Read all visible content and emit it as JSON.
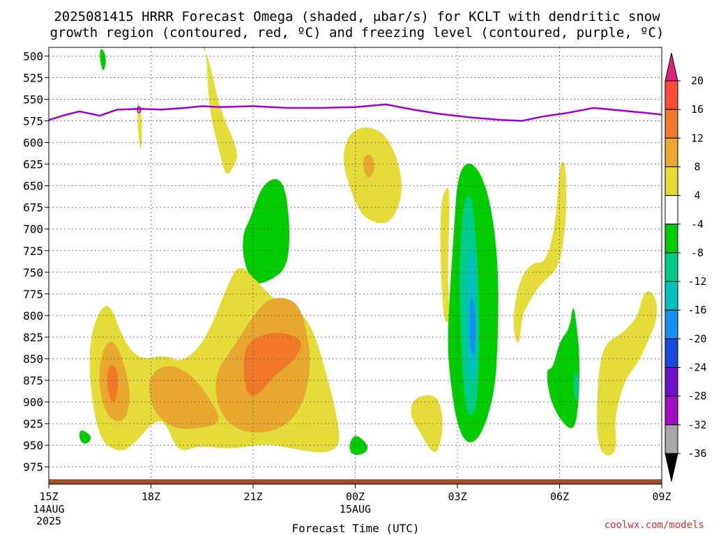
{
  "chart_data": {
    "type": "heatmap",
    "title": "2025081415 HRRR Forecast Omega (shaded, μbar/s) for KCLT with dendritic snow growth region (contoured, red, ºC) and freezing level (contoured, purple, ºC)",
    "title_lines": [
      "2025081415 HRRR Forecast Omega (shaded, μbar/s) for KCLT with dendritic snow",
      "growth region (contoured, red, ºC) and freezing level (contoured, purple, ºC)"
    ],
    "xlabel": "Forecast Time (UTC)",
    "ylabel": "",
    "x_ticks": [
      {
        "hour": 0,
        "label": "15Z",
        "sub": [
          "14AUG",
          "2025"
        ]
      },
      {
        "hour": 3,
        "label": "18Z",
        "sub": []
      },
      {
        "hour": 6,
        "label": "21Z",
        "sub": []
      },
      {
        "hour": 9,
        "label": "00Z",
        "sub": [
          "15AUG"
        ]
      },
      {
        "hour": 12,
        "label": "03Z",
        "sub": []
      },
      {
        "hour": 15,
        "label": "06Z",
        "sub": []
      },
      {
        "hour": 18,
        "label": "09Z",
        "sub": []
      }
    ],
    "y_axis": {
      "range_hpa": [
        490,
        995
      ],
      "reversed": true
    },
    "y_ticks": [
      500,
      525,
      550,
      575,
      600,
      625,
      650,
      675,
      700,
      725,
      750,
      775,
      800,
      825,
      850,
      875,
      900,
      925,
      950,
      975
    ],
    "grid": true,
    "colorbar": {
      "labels": [
        "20",
        "16",
        "12",
        "8",
        "4",
        "-4",
        "-8",
        "-12",
        "-16",
        "-20",
        "-24",
        "-28",
        "-32",
        "-36"
      ],
      "segments": [
        {
          "color": "#ff4a3a"
        },
        {
          "color": "#f07828"
        },
        {
          "color": "#e8a830"
        },
        {
          "color": "#e4dc38"
        },
        {
          "color": "#ffffff"
        },
        {
          "color": "#00cc00"
        },
        {
          "color": "#00cc88"
        },
        {
          "color": "#00c0c0"
        },
        {
          "color": "#1890f0"
        },
        {
          "color": "#1848e0"
        },
        {
          "color": "#7010c8"
        },
        {
          "color": "#a010c0"
        },
        {
          "color": "#a8a8a8"
        }
      ],
      "top_arrow_color": "#e0207a",
      "bottom_arrow_color": "#000000"
    },
    "colors": {
      "yellow": "#e4dc38",
      "gold": "#e8a830",
      "orange": "#f07828",
      "green": "#00cc00",
      "teal": "#00cc88",
      "cyan": "#00c0c0",
      "blue": "#1890f0",
      "freezing_line": "#9900cc",
      "ground": "#a0522d"
    },
    "freezing_level": {
      "label": "0",
      "label_point": [
        2.65,
        562
      ],
      "points": [
        [
          0,
          574
        ],
        [
          0.5,
          568
        ],
        [
          0.9,
          564
        ],
        [
          1.5,
          569
        ],
        [
          2.0,
          562
        ],
        [
          2.7,
          561
        ],
        [
          3.3,
          562
        ],
        [
          4.0,
          560
        ],
        [
          4.5,
          558
        ],
        [
          5.0,
          559
        ],
        [
          6.0,
          558
        ],
        [
          7.0,
          560
        ],
        [
          8.0,
          560
        ],
        [
          9.0,
          559
        ],
        [
          9.9,
          556
        ],
        [
          10.7,
          562
        ],
        [
          11.5,
          567
        ],
        [
          12.4,
          571
        ],
        [
          13.3,
          574
        ],
        [
          13.9,
          575
        ],
        [
          14.5,
          570
        ],
        [
          15.2,
          566
        ],
        [
          16.0,
          560
        ],
        [
          16.8,
          563
        ],
        [
          17.6,
          566
        ],
        [
          18.5,
          570
        ],
        [
          19.2,
          566
        ],
        [
          19.6,
          565
        ]
      ]
    },
    "omega_regions": [
      {
        "color": "yellow",
        "points": [
          [
            2.6,
            550
          ],
          [
            2.7,
            561
          ],
          [
            2.75,
            585
          ],
          [
            2.7,
            615
          ],
          [
            2.6,
            580
          ]
        ]
      },
      {
        "color": "green",
        "points": [
          [
            1.5,
            492
          ],
          [
            1.6,
            492
          ],
          [
            1.7,
            505
          ],
          [
            1.6,
            520
          ],
          [
            1.5,
            505
          ]
        ]
      },
      {
        "color": "yellow",
        "points": [
          [
            4.3,
            478
          ],
          [
            4.6,
            478
          ],
          [
            4.7,
            560
          ],
          [
            5.0,
            610
          ],
          [
            5.2,
            640
          ],
          [
            5.4,
            630
          ],
          [
            5.6,
            612
          ],
          [
            5.0,
            560
          ],
          [
            4.7,
            500
          ]
        ]
      },
      {
        "color": "green",
        "points": [
          [
            6.3,
            645
          ],
          [
            6.9,
            640
          ],
          [
            7.1,
            700
          ],
          [
            7.0,
            745
          ],
          [
            6.5,
            760
          ],
          [
            6.0,
            765
          ],
          [
            5.7,
            735
          ],
          [
            5.7,
            705
          ],
          [
            5.9,
            690
          ]
        ]
      },
      {
        "color": "yellow",
        "points": [
          [
            8.6,
            620
          ],
          [
            8.8,
            590
          ],
          [
            9.3,
            580
          ],
          [
            9.9,
            590
          ],
          [
            10.3,
            625
          ],
          [
            10.4,
            660
          ],
          [
            10.1,
            690
          ],
          [
            9.7,
            695
          ],
          [
            9.2,
            685
          ],
          [
            8.9,
            660
          ]
        ]
      },
      {
        "color": "gold",
        "points": [
          [
            9.2,
            620
          ],
          [
            9.4,
            612
          ],
          [
            9.6,
            622
          ],
          [
            9.5,
            640
          ],
          [
            9.3,
            640
          ]
        ]
      },
      {
        "color": "yellow",
        "points": [
          [
            1.1,
            833
          ],
          [
            1.7,
            775
          ],
          [
            2.2,
            830
          ],
          [
            2.7,
            852
          ],
          [
            3.4,
            845
          ],
          [
            3.9,
            855
          ],
          [
            4.6,
            830
          ],
          [
            5.3,
            760
          ],
          [
            5.6,
            740
          ],
          [
            6.1,
            760
          ],
          [
            6.7,
            785
          ],
          [
            7.4,
            795
          ],
          [
            7.8,
            820
          ],
          [
            8.1,
            860
          ],
          [
            8.4,
            905
          ],
          [
            8.6,
            950
          ],
          [
            8.1,
            960
          ],
          [
            7.3,
            955
          ],
          [
            6.4,
            948
          ],
          [
            5.3,
            955
          ],
          [
            4.4,
            950
          ],
          [
            3.8,
            960
          ],
          [
            3.4,
            920
          ],
          [
            3.0,
            925
          ],
          [
            2.6,
            945
          ],
          [
            2.1,
            960
          ],
          [
            1.4,
            942
          ]
        ]
      },
      {
        "color": "gold",
        "points": [
          [
            1.55,
            840
          ],
          [
            1.9,
            825
          ],
          [
            2.3,
            865
          ],
          [
            2.4,
            900
          ],
          [
            2.2,
            925
          ],
          [
            1.7,
            918
          ],
          [
            1.45,
            880
          ]
        ]
      },
      {
        "color": "orange",
        "points": [
          [
            1.75,
            855
          ],
          [
            2.0,
            860
          ],
          [
            2.05,
            885
          ],
          [
            1.9,
            905
          ],
          [
            1.7,
            885
          ]
        ]
      },
      {
        "color": "gold",
        "points": [
          [
            2.9,
            870
          ],
          [
            3.5,
            855
          ],
          [
            4.2,
            868
          ],
          [
            4.8,
            900
          ],
          [
            5.1,
            925
          ],
          [
            4.2,
            932
          ],
          [
            3.6,
            930
          ],
          [
            3.0,
            908
          ]
        ]
      },
      {
        "color": "gold",
        "points": [
          [
            4.9,
            865
          ],
          [
            5.4,
            838
          ],
          [
            6.0,
            800
          ],
          [
            6.5,
            778
          ],
          [
            7.3,
            782
          ],
          [
            7.6,
            820
          ],
          [
            7.7,
            860
          ],
          [
            7.5,
            900
          ],
          [
            7.0,
            928
          ],
          [
            6.1,
            938
          ],
          [
            5.3,
            928
          ],
          [
            4.9,
            900
          ]
        ]
      },
      {
        "color": "orange",
        "points": [
          [
            5.8,
            832
          ],
          [
            6.4,
            820
          ],
          [
            7.0,
            820
          ],
          [
            7.5,
            830
          ],
          [
            7.2,
            853
          ],
          [
            6.6,
            870
          ],
          [
            6.1,
            895
          ],
          [
            5.8,
            890
          ],
          [
            5.7,
            860
          ]
        ]
      },
      {
        "color": "green",
        "points": [
          [
            0.9,
            930
          ],
          [
            1.3,
            940
          ],
          [
            1.1,
            950
          ],
          [
            0.9,
            945
          ]
        ]
      },
      {
        "color": "green",
        "points": [
          [
            9.0,
            936
          ],
          [
            9.4,
            950
          ],
          [
            9.3,
            960
          ],
          [
            8.9,
            962
          ],
          [
            8.8,
            950
          ]
        ]
      },
      {
        "color": "yellow",
        "points": [
          [
            10.7,
            895
          ],
          [
            11.4,
            890
          ],
          [
            11.6,
            920
          ],
          [
            11.5,
            950
          ],
          [
            11.3,
            962
          ],
          [
            10.9,
            935
          ],
          [
            10.6,
            915
          ]
        ]
      },
      {
        "color": "yellow",
        "points": [
          [
            11.6,
            655
          ],
          [
            11.8,
            650
          ],
          [
            11.7,
            760
          ],
          [
            11.8,
            805
          ],
          [
            11.6,
            810
          ],
          [
            11.5,
            740
          ],
          [
            11.5,
            680
          ]
        ]
      },
      {
        "color": "yellow",
        "points": [
          [
            13.8,
            760
          ],
          [
            14.2,
            738
          ],
          [
            14.6,
            740
          ],
          [
            14.9,
            690
          ],
          [
            15.0,
            620
          ],
          [
            15.2,
            625
          ],
          [
            15.2,
            690
          ],
          [
            15.0,
            745
          ],
          [
            14.4,
            765
          ],
          [
            14.1,
            785
          ],
          [
            13.9,
            800
          ],
          [
            13.8,
            840
          ],
          [
            13.6,
            810
          ]
        ]
      },
      {
        "color": "green",
        "points": [
          [
            12.0,
            640
          ],
          [
            12.3,
            620
          ],
          [
            12.7,
            635
          ],
          [
            13.0,
            675
          ],
          [
            13.2,
            740
          ],
          [
            13.2,
            820
          ],
          [
            13.1,
            890
          ],
          [
            12.7,
            940
          ],
          [
            12.3,
            950
          ],
          [
            12.0,
            928
          ],
          [
            11.8,
            880
          ],
          [
            11.7,
            830
          ],
          [
            11.8,
            760
          ],
          [
            11.9,
            700
          ]
        ]
      },
      {
        "color": "teal",
        "points": [
          [
            12.2,
            665
          ],
          [
            12.4,
            660
          ],
          [
            12.5,
            690
          ],
          [
            12.6,
            745
          ],
          [
            12.65,
            810
          ],
          [
            12.6,
            900
          ],
          [
            12.4,
            920
          ],
          [
            12.2,
            900
          ],
          [
            12.1,
            830
          ],
          [
            12.05,
            760
          ],
          [
            12.1,
            710
          ]
        ]
      },
      {
        "color": "cyan",
        "points": [
          [
            12.35,
            720
          ],
          [
            12.5,
            725
          ],
          [
            12.55,
            790
          ],
          [
            12.6,
            835
          ],
          [
            12.5,
            880
          ],
          [
            12.35,
            875
          ],
          [
            12.25,
            820
          ],
          [
            12.25,
            760
          ]
        ]
      },
      {
        "color": "blue",
        "points": [
          [
            12.4,
            775
          ],
          [
            12.52,
            790
          ],
          [
            12.55,
            820
          ],
          [
            12.5,
            850
          ],
          [
            12.38,
            840
          ],
          [
            12.35,
            800
          ]
        ]
      },
      {
        "color": "green",
        "points": [
          [
            14.8,
            862
          ],
          [
            15.0,
            830
          ],
          [
            15.3,
            815
          ],
          [
            15.4,
            785
          ],
          [
            15.5,
            810
          ],
          [
            15.6,
            850
          ],
          [
            15.55,
            910
          ],
          [
            15.4,
            935
          ],
          [
            15.0,
            920
          ],
          [
            14.7,
            895
          ],
          [
            14.6,
            862
          ]
        ]
      },
      {
        "color": "teal",
        "points": [
          [
            15.45,
            865
          ],
          [
            15.55,
            868
          ],
          [
            15.55,
            895
          ],
          [
            15.45,
            900
          ],
          [
            15.4,
            880
          ]
        ]
      },
      {
        "color": "yellow",
        "points": [
          [
            16.4,
            830
          ],
          [
            16.8,
            822
          ],
          [
            17.1,
            810
          ],
          [
            17.3,
            800
          ],
          [
            17.5,
            770
          ],
          [
            17.8,
            775
          ],
          [
            17.9,
            800
          ],
          [
            17.6,
            830
          ],
          [
            17.3,
            855
          ],
          [
            16.9,
            875
          ],
          [
            16.6,
            920
          ],
          [
            16.7,
            955
          ],
          [
            16.4,
            965
          ],
          [
            16.1,
            950
          ],
          [
            16.1,
            890
          ],
          [
            16.2,
            850
          ]
        ]
      }
    ]
  },
  "footer": {
    "credit": "coolwx.com/models"
  }
}
